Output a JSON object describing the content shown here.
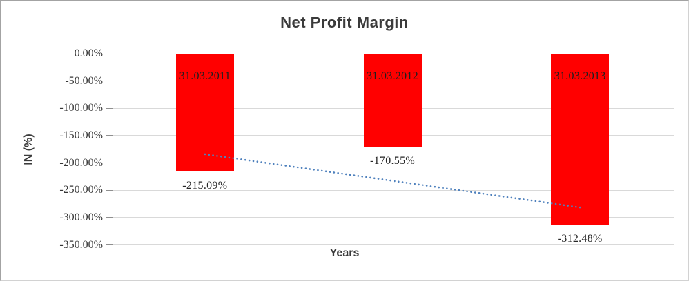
{
  "chart_data": {
    "type": "bar",
    "title": "Net Profit Margin",
    "xlabel": "Years",
    "ylabel": "IN (%)",
    "categories": [
      "31.03.2011",
      "31.03.2012",
      "31.03.2013"
    ],
    "values": [
      -215.09,
      -170.55,
      -312.48
    ],
    "data_labels": [
      "-215.09%",
      "-170.55%",
      "-312.48%"
    ],
    "y_tick_labels": [
      "0.00%",
      "-50.00%",
      "-100.00%",
      "-150.00%",
      "-200.00%",
      "-250.00%",
      "-300.00%",
      "-350.00%"
    ],
    "ylim": [
      -350,
      0
    ],
    "grid": true,
    "legend_position": "none",
    "bar_color": "#ff0000",
    "trendline": {
      "type": "linear",
      "style": "dotted",
      "color": "#4f81bd",
      "values": [
        -184.05,
        -232.71,
        -281.37
      ]
    }
  }
}
